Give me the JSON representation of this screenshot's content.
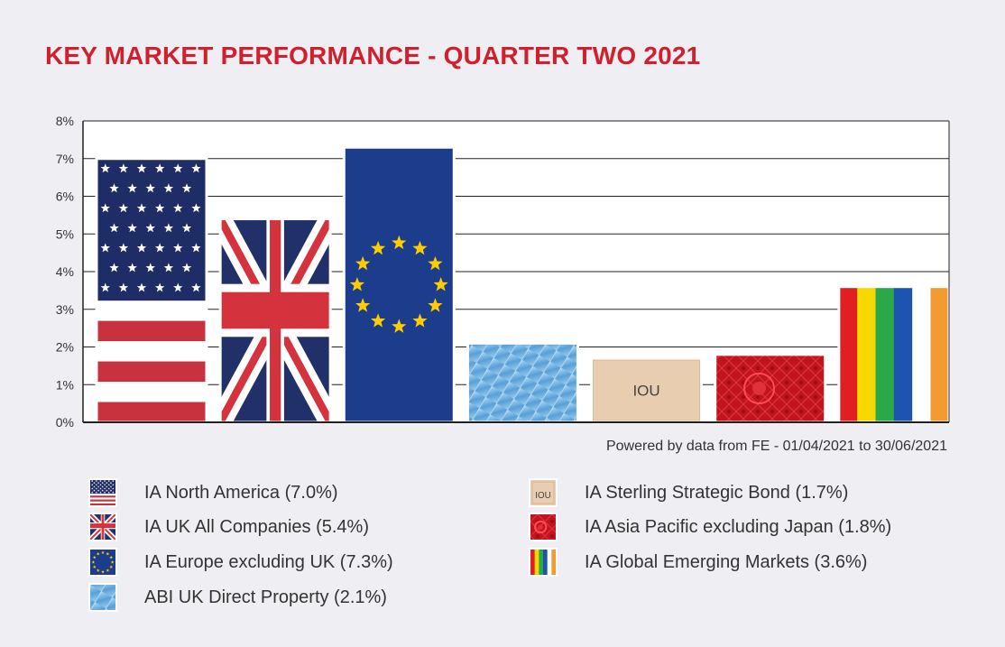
{
  "title": "KEY MARKET PERFORMANCE - QUARTER TWO 2021",
  "source_note": "Powered by data from FE - 01/04/2021 to 30/06/2021",
  "chart_data": {
    "type": "bar",
    "title": "KEY MARKET PERFORMANCE - QUARTER TWO 2021",
    "xlabel": "",
    "ylabel": "",
    "ylim": [
      0,
      8
    ],
    "yticks": [
      "0%",
      "1%",
      "2%",
      "3%",
      "4%",
      "5%",
      "6%",
      "7%",
      "8%"
    ],
    "grid": true,
    "categories": [
      "IA North America",
      "IA UK All Companies",
      "IA Europe excluding UK",
      "ABI UK Direct Property",
      "IA Sterling Strategic Bond",
      "IA Asia Pacific excluding Japan",
      "IA Global Emerging Markets"
    ],
    "values": [
      7.0,
      5.4,
      7.3,
      2.1,
      1.7,
      1.8,
      3.6
    ],
    "fills": [
      "us-flag",
      "uk-flag",
      "eu-flag",
      "glass-building",
      "iou-note",
      "red-pattern",
      "rainbow-stripes"
    ],
    "bar_text": [
      "",
      "",
      "",
      "",
      "IOU",
      "",
      ""
    ]
  },
  "legend": [
    {
      "label": "IA North America (7.0%)",
      "icon": "us-flag-icon"
    },
    {
      "label": "IA UK All Companies (5.4%)",
      "icon": "uk-flag-icon"
    },
    {
      "label": "IA Europe excluding UK (7.3%)",
      "icon": "eu-flag-icon"
    },
    {
      "label": "ABI UK Direct Property (2.1%)",
      "icon": "building-icon"
    },
    {
      "label": "IA Sterling Strategic Bond (1.7%)",
      "icon": "iou-icon",
      "icon_text": "IOU"
    },
    {
      "label": "IA Asia Pacific excluding Japan (1.8%)",
      "icon": "asia-pattern-icon"
    },
    {
      "label": "IA Global Emerging Markets (3.6%)",
      "icon": "rainbow-icon"
    }
  ],
  "colors": {
    "title": "#d0202e",
    "us_blue": "#1f2d66",
    "us_red": "#c8323e",
    "uk_blue": "#22306a",
    "uk_red": "#d4333d",
    "eu_blue": "#1c3c8c",
    "eu_gold": "#ffcc00",
    "glass": "#5aa9e0",
    "iou": "#e8cdb0",
    "asia_red": "#c0141e",
    "rainbow": [
      "#e02020",
      "#f5d800",
      "#2aa84a",
      "#1d54b0",
      "#ffffff",
      "#f39a30"
    ]
  }
}
